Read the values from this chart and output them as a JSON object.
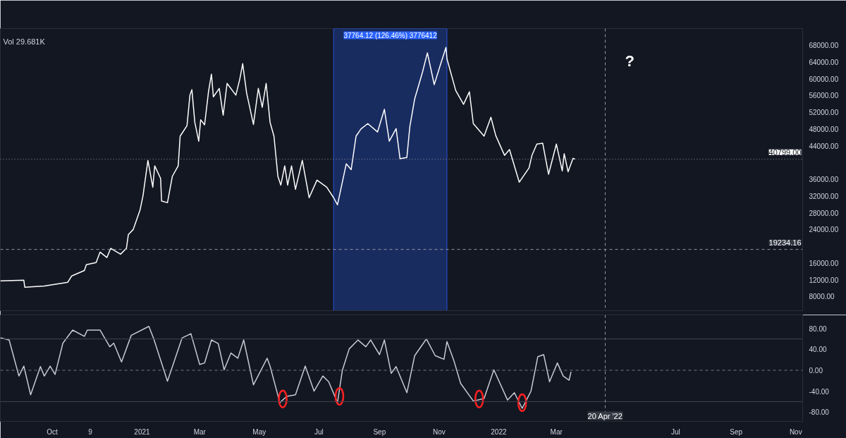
{
  "chart_data": [
    {
      "type": "line",
      "annotations": [
        "Vol 29.681K",
        "?"
      ],
      "series": [
        {
          "color": "#ffffff",
          "x": [
            "2020-08-09",
            "2020-09-02",
            "2020-09-03",
            "2020-09-23",
            "2020-10-17",
            "2020-10-21",
            "2020-11-03",
            "2020-11-05",
            "2020-11-15",
            "2020-11-19",
            "2020-11-26",
            "2020-11-30",
            "2020-12-10",
            "2020-12-16",
            "2020-12-18",
            "2020-12-23",
            "2020-12-30",
            "2021-01-02",
            "2021-01-07",
            "2021-01-12",
            "2021-01-14",
            "2021-01-20",
            "2021-01-21",
            "2021-01-27",
            "2021-02-01",
            "2021-02-07",
            "2021-02-09",
            "2021-02-16",
            "2021-02-19",
            "2021-02-21",
            "2021-02-24",
            "2021-02-28",
            "2021-03-02",
            "2021-03-06",
            "2021-03-10",
            "2021-03-13",
            "2021-03-15",
            "2021-03-21",
            "2021-03-25",
            "2021-03-29",
            "2021-04-07",
            "2021-04-11",
            "2021-04-14",
            "2021-04-18",
            "2021-04-25",
            "2021-04-30",
            "2021-05-04",
            "2021-05-08",
            "2021-05-12",
            "2021-05-16",
            "2021-05-20",
            "2021-05-23",
            "2021-05-27",
            "2021-05-30",
            "2021-06-03",
            "2021-06-07",
            "2021-06-14",
            "2021-06-21",
            "2021-06-29",
            "2021-07-09",
            "2021-07-16",
            "2021-07-20",
            "2021-07-29",
            "2021-08-03",
            "2021-08-08",
            "2021-08-13",
            "2021-08-20",
            "2021-08-30",
            "2021-09-06",
            "2021-09-11",
            "2021-09-18",
            "2021-09-22",
            "2021-09-29",
            "2021-10-02",
            "2021-10-07",
            "2021-10-15",
            "2021-10-20",
            "2021-10-27",
            "2021-11-02",
            "2021-11-08",
            "2021-11-09",
            "2021-11-18",
            "2021-11-26",
            "2021-12-02",
            "2021-12-06",
            "2021-12-17",
            "2021-12-24",
            "2021-12-29",
            "2022-01-07",
            "2022-01-12",
            "2022-01-22",
            "2022-02-01",
            "2022-02-04",
            "2022-02-09",
            "2022-02-15",
            "2022-02-21",
            "2022-03-01",
            "2022-03-07",
            "2022-03-09",
            "2022-03-13",
            "2022-03-18",
            "2022-03-20"
          ],
          "values": [
            11700,
            11900,
            10200,
            10500,
            11400,
            12900,
            14200,
            15600,
            16100,
            18600,
            17300,
            19500,
            18100,
            19500,
            22800,
            24000,
            28700,
            32100,
            40500,
            34100,
            39200,
            36200,
            30800,
            30400,
            36700,
            39200,
            46300,
            48800,
            56100,
            57400,
            49600,
            45100,
            50200,
            49000,
            56900,
            61100,
            55700,
            57700,
            51300,
            58900,
            56100,
            59900,
            63600,
            56600,
            49100,
            57700,
            53200,
            58900,
            49600,
            46300,
            36700,
            34600,
            39200,
            34600,
            39200,
            33600,
            40500,
            31600,
            35800,
            34100,
            31600,
            29900,
            39700,
            38300,
            46300,
            48000,
            49300,
            47300,
            52700,
            45100,
            48100,
            40900,
            41200,
            48500,
            55200,
            61600,
            66200,
            58600,
            63100,
            67500,
            64800,
            57200,
            53900,
            56900,
            49300,
            46300,
            50800,
            46400,
            41700,
            43100,
            35300,
            38700,
            41700,
            44400,
            44600,
            37200,
            44400,
            38000,
            42100,
            37800,
            41000,
            40799
          ]
        }
      ],
      "xlim": [
        "2020-08-09",
        "2022-11-08"
      ],
      "ylim": [
        4600,
        72000
      ],
      "yticks": [
        {
          "value": 8000,
          "label": "8000.00"
        },
        {
          "value": 12000,
          "label": "12000.00"
        },
        {
          "value": 16000,
          "label": "16000.00"
        },
        {
          "value": 24000,
          "label": "24000.00"
        },
        {
          "value": 28000,
          "label": "28000.00"
        },
        {
          "value": 32000,
          "label": "32000.00"
        },
        {
          "value": 36000,
          "label": "36000.00"
        },
        {
          "value": 44000,
          "label": "44000.00"
        },
        {
          "value": 48000,
          "label": "48000.00"
        },
        {
          "value": 52000,
          "label": "52000.00"
        },
        {
          "value": 56000,
          "label": "56000.00"
        },
        {
          "value": 60000,
          "label": "60000.00"
        },
        {
          "value": 64000,
          "label": "64000.00"
        },
        {
          "value": 68000,
          "label": "68000.00"
        }
      ],
      "xticks": [
        {
          "value": "2020-10-01",
          "label": null
        },
        {
          "value": "2020-11-09",
          "label": null
        },
        {
          "value": "2021-01-01",
          "label": null
        },
        {
          "value": "2021-03-01",
          "label": null
        },
        {
          "value": "2021-05-01",
          "label": null
        },
        {
          "value": "2021-07-01",
          "label": null
        },
        {
          "value": "2021-09-01",
          "label": null
        },
        {
          "value": "2021-11-01",
          "label": null
        },
        {
          "value": "2022-01-01",
          "label": null
        },
        {
          "value": "2022-03-01",
          "label": null
        },
        {
          "value": "2022-07-01",
          "label": null
        },
        {
          "value": "2022-09-01",
          "label": null
        },
        {
          "value": "2022-11-01",
          "label": null
        }
      ],
      "tick_labels": "y",
      "grid": false,
      "ref_lines": [
        {
          "axis": "y",
          "value": 40799,
          "label": "40799.00",
          "color": "#9598a1",
          "line_style": "dotted"
        },
        {
          "axis": "y",
          "value": 19234.16,
          "label": "19234.16",
          "color": "#9598a1",
          "line_style": "dashed"
        },
        {
          "axis": "x",
          "value": "2022-04-20",
          "color": "#9598a1",
          "line_style": "dashed"
        }
      ],
      "bands": [
        {
          "axis": "x",
          "from": "2021-07-16",
          "to": "2021-11-09",
          "label": "37764.12 (126.46%) 3776412",
          "color": "#1e3a8a"
        }
      ]
    },
    {
      "type": "line",
      "series": [
        {
          "color": "#c8cad2",
          "x": [
            "2020-08-09",
            "2020-08-18",
            "2020-08-28",
            "2020-09-02",
            "2020-09-09",
            "2020-09-19",
            "2020-09-23",
            "2020-09-29",
            "2020-10-04",
            "2020-10-12",
            "2020-10-22",
            "2020-11-03",
            "2020-11-06",
            "2020-11-19",
            "2020-11-29",
            "2020-12-03",
            "2020-12-11",
            "2020-12-21",
            "2021-01-08",
            "2021-01-13",
            "2021-01-27",
            "2021-02-11",
            "2021-02-20",
            "2021-03-01",
            "2021-03-06",
            "2021-03-13",
            "2021-03-20",
            "2021-03-26",
            "2021-04-02",
            "2021-04-09",
            "2021-04-15",
            "2021-04-25",
            "2021-05-09",
            "2021-05-12",
            "2021-05-22",
            "2021-05-29",
            "2021-06-07",
            "2021-06-17",
            "2021-06-26",
            "2021-07-05",
            "2021-07-11",
            "2021-07-20",
            "2021-07-25",
            "2021-08-01",
            "2021-08-10",
            "2021-08-18",
            "2021-08-23",
            "2021-09-01",
            "2021-09-06",
            "2021-09-13",
            "2021-09-18",
            "2021-09-29",
            "2021-10-07",
            "2021-10-19",
            "2021-10-28",
            "2021-11-06",
            "2021-11-09",
            "2021-11-16",
            "2021-11-23",
            "2021-12-06",
            "2021-12-17",
            "2021-12-27",
            "2022-01-10",
            "2022-01-17",
            "2022-01-25",
            "2022-02-03",
            "2022-02-10",
            "2022-02-16",
            "2022-02-22",
            "2022-03-02",
            "2022-03-08",
            "2022-03-14",
            "2022-03-16"
          ],
          "values": [
            62,
            58,
            -11,
            8,
            -47,
            7,
            -11,
            8,
            -8,
            52,
            77,
            65,
            77,
            77,
            45,
            52,
            16,
            67,
            84,
            60,
            -21,
            62,
            70,
            11,
            14,
            58,
            51,
            1,
            33,
            23,
            58,
            -28,
            23,
            8,
            -62,
            -50,
            -47,
            8,
            -40,
            -11,
            -22,
            -62,
            0,
            41,
            58,
            45,
            58,
            30,
            58,
            -6,
            7,
            -43,
            28,
            60,
            28,
            21,
            55,
            19,
            -25,
            -59,
            -54,
            1,
            -57,
            -43,
            -73,
            -40,
            26,
            30,
            -22,
            14,
            -11,
            -19,
            -3
          ]
        }
      ],
      "xlim": [
        "2020-08-09",
        "2022-11-08"
      ],
      "ylim": [
        -98,
        106
      ],
      "yticks": [
        {
          "value": 80,
          "label": "80.00"
        },
        {
          "value": 40,
          "label": "40.00"
        },
        {
          "value": 0,
          "label": "0.00"
        },
        {
          "value": -40,
          "label": "-40.00"
        },
        {
          "value": -80,
          "label": "-80.00"
        }
      ],
      "xticks": [
        {
          "value": "2020-10-01",
          "label": "Oct"
        },
        {
          "value": "2020-11-09",
          "label": "9"
        },
        {
          "value": "2021-01-01",
          "label": "2021"
        },
        {
          "value": "2021-03-01",
          "label": "Mar"
        },
        {
          "value": "2021-05-01",
          "label": "May"
        },
        {
          "value": "2021-07-01",
          "label": "Jul"
        },
        {
          "value": "2021-09-01",
          "label": "Sep"
        },
        {
          "value": "2021-11-01",
          "label": "Nov"
        },
        {
          "value": "2022-01-01",
          "label": "2022"
        },
        {
          "value": "2022-03-01",
          "label": "Mar"
        },
        {
          "value": "2022-07-01",
          "label": "Jul"
        },
        {
          "value": "2022-09-01",
          "label": "Sep"
        },
        {
          "value": "2022-11-01",
          "label": "Nov"
        }
      ],
      "grid": false,
      "ref_lines": [
        {
          "axis": "y",
          "value": 60,
          "color": "#434651",
          "line_style": "solid"
        },
        {
          "axis": "y",
          "value": 0,
          "color": "#787b86",
          "line_style": "dashed"
        },
        {
          "axis": "y",
          "value": -60,
          "color": "#434651",
          "line_style": "solid"
        },
        {
          "axis": "x",
          "value": "2022-04-20",
          "label": "20 Apr '22",
          "color": "#9598a1",
          "line_style": "dashed"
        }
      ]
    }
  ]
}
